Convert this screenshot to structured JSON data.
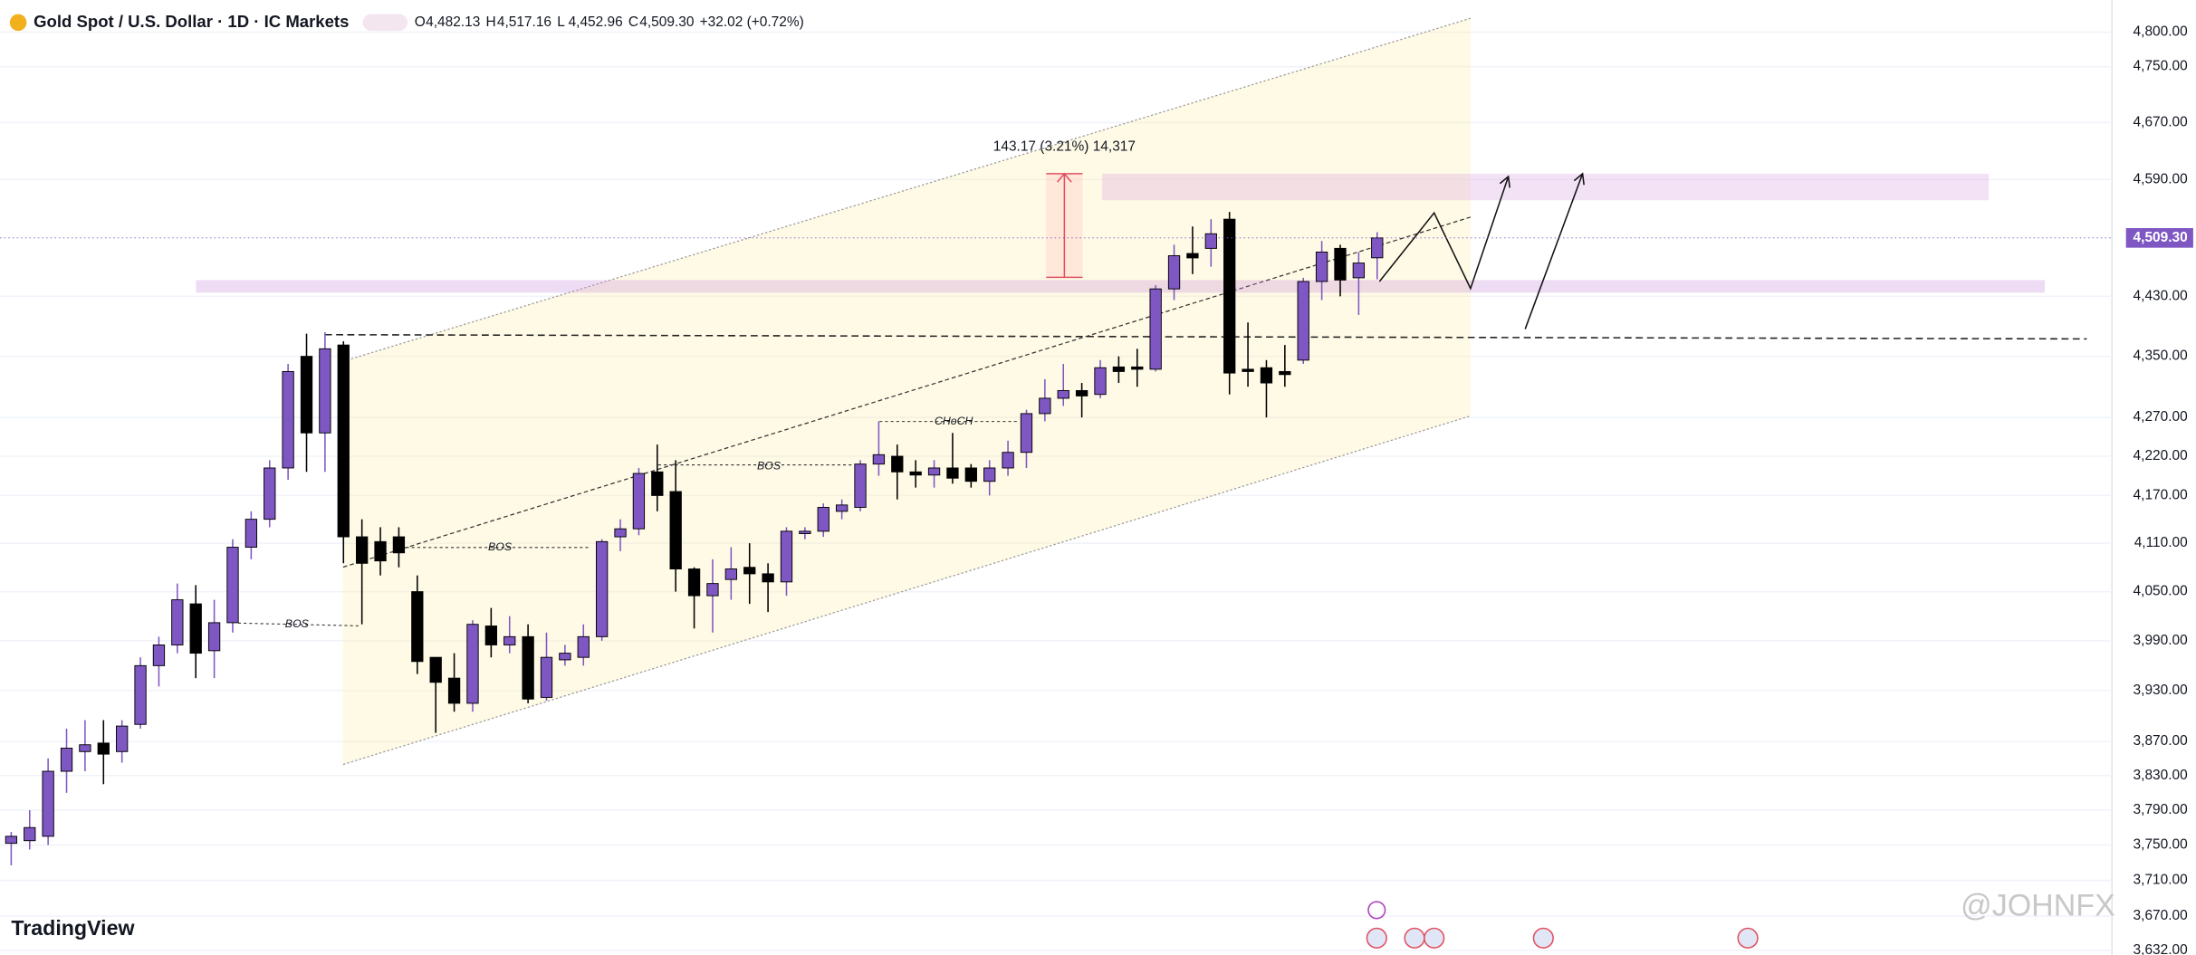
{
  "chart_data": {
    "type": "candlestick",
    "title": "Gold Spot / U.S. Dollar · 1D · IC Markets",
    "header_values": [
      {
        "key": "O",
        "value": "4,482.13"
      },
      {
        "key": "H",
        "value": "4,517.16"
      },
      {
        "key": "L",
        "value": "4,452.96"
      },
      {
        "key": "C",
        "value": "4,509.30"
      }
    ],
    "change": "+32.02 (+0.72%)",
    "log_scale": true,
    "grid": true,
    "up_color": "#7e57c2",
    "down_color": "#000000",
    "ylim": [
      3627,
      4847
    ],
    "yticks": [
      {
        "value": 3632,
        "label": "3,632.00"
      },
      {
        "value": 3670,
        "label": "3,670.00"
      },
      {
        "value": 3710,
        "label": "3,710.00"
      },
      {
        "value": 3750,
        "label": "3,750.00"
      },
      {
        "value": 3790,
        "label": "3,790.00"
      },
      {
        "value": 3830,
        "label": "3,830.00"
      },
      {
        "value": 3870,
        "label": "3,870.00"
      },
      {
        "value": 3930,
        "label": "3,930.00"
      },
      {
        "value": 3990,
        "label": "3,990.00"
      },
      {
        "value": 4050,
        "label": "4,050.00"
      },
      {
        "value": 4110,
        "label": "4,110.00"
      },
      {
        "value": 4170,
        "label": "4,170.00"
      },
      {
        "value": 4220,
        "label": "4,220.00"
      },
      {
        "value": 4270,
        "label": "4,270.00"
      },
      {
        "value": 4350,
        "label": "4,350.00"
      },
      {
        "value": 4430,
        "label": "4,430.00"
      },
      {
        "value": 4590,
        "label": "4,590.00"
      },
      {
        "value": 4670,
        "label": "4,670.00"
      },
      {
        "value": 4750,
        "label": "4,750.00"
      },
      {
        "value": 4800,
        "label": "4,800.00"
      }
    ],
    "last_price": {
      "value": 4509.3,
      "label": "4,509.30"
    },
    "open": [
      3752,
      3755,
      3760,
      3835,
      3858,
      3868,
      3858,
      3890,
      3960,
      3985,
      4035,
      3978,
      4012,
      4105,
      4140,
      4205,
      4350,
      4250,
      4365,
      4118,
      4112,
      4118,
      4050,
      3970,
      3945,
      3915,
      4008,
      3985,
      3995,
      3922,
      3967,
      3970,
      3995,
      4118,
      4128,
      4200,
      4175,
      4078,
      4045,
      4065,
      4080,
      4072,
      4062,
      4122,
      4125,
      4150,
      4155,
      4210,
      4220,
      4200,
      4196,
      4205,
      4205,
      4188,
      4205,
      4225,
      4275,
      4295,
      4305,
      4300,
      4336,
      4336,
      4333,
      4440,
      4488,
      4495,
      4535,
      4333,
      4335,
      4330,
      4345,
      4450,
      4495,
      4455,
      4482.13
    ],
    "high": [
      3765,
      3790,
      3850,
      3885,
      3895,
      3895,
      3895,
      3970,
      3995,
      4060,
      4058,
      4040,
      4115,
      4150,
      4215,
      4340,
      4380,
      4382,
      4370,
      4140,
      4130,
      4130,
      4070,
      3970,
      3975,
      4015,
      4030,
      4020,
      4010,
      4000,
      3985,
      4010,
      4115,
      4140,
      4205,
      4235,
      4215,
      4080,
      4090,
      4105,
      4110,
      4085,
      4130,
      4130,
      4160,
      4165,
      4215,
      4265,
      4235,
      4215,
      4215,
      4250,
      4210,
      4215,
      4240,
      4280,
      4320,
      4340,
      4315,
      4345,
      4350,
      4360,
      4445,
      4500,
      4525,
      4535,
      4545,
      4395,
      4345,
      4365,
      4455,
      4505,
      4500,
      4490,
      4517.16
    ],
    "low": [
      3727,
      3745,
      3750,
      3810,
      3835,
      3820,
      3845,
      3885,
      3935,
      3975,
      3945,
      3945,
      4000,
      4090,
      4130,
      4190,
      4200,
      4200,
      4085,
      4010,
      4070,
      4080,
      3950,
      3880,
      3905,
      3905,
      3970,
      3975,
      3915,
      3918,
      3960,
      3960,
      3990,
      4100,
      4120,
      4150,
      4050,
      4005,
      4000,
      4040,
      4035,
      4025,
      4045,
      4115,
      4118,
      4140,
      4150,
      4195,
      4165,
      4180,
      4180,
      4185,
      4180,
      4170,
      4195,
      4205,
      4265,
      4285,
      4270,
      4295,
      4315,
      4310,
      4330,
      4425,
      4460,
      4470,
      4300,
      4310,
      4270,
      4310,
      4340,
      4425,
      4430,
      4405,
      4452.96
    ],
    "close": [
      3760,
      3770,
      3835,
      3862,
      3866,
      3855,
      3888,
      3960,
      3985,
      4040,
      3975,
      4012,
      4105,
      4140,
      4205,
      4330,
      4250,
      4360,
      4118,
      4085,
      4088,
      4098,
      3965,
      3940,
      3915,
      4010,
      3985,
      3995,
      3920,
      3970,
      3975,
      3995,
      4112,
      4128,
      4198,
      4170,
      4078,
      4045,
      4060,
      4078,
      4072,
      4062,
      4125,
      4125,
      4155,
      4158,
      4210,
      4222,
      4200,
      4196,
      4205,
      4192,
      4188,
      4205,
      4225,
      4275,
      4295,
      4305,
      4298,
      4335,
      4330,
      4333,
      4440,
      4485,
      4482,
      4515,
      4328,
      4330,
      4315,
      4326,
      4450,
      4490,
      4452,
      4475,
      4509.3
    ],
    "annotations": [
      "BOS",
      "BOS",
      "BOS",
      "CHoCH",
      "143.17 (3.21%) 14,317"
    ],
    "branding": "TradingView",
    "watermark": "@JOHNFX"
  }
}
